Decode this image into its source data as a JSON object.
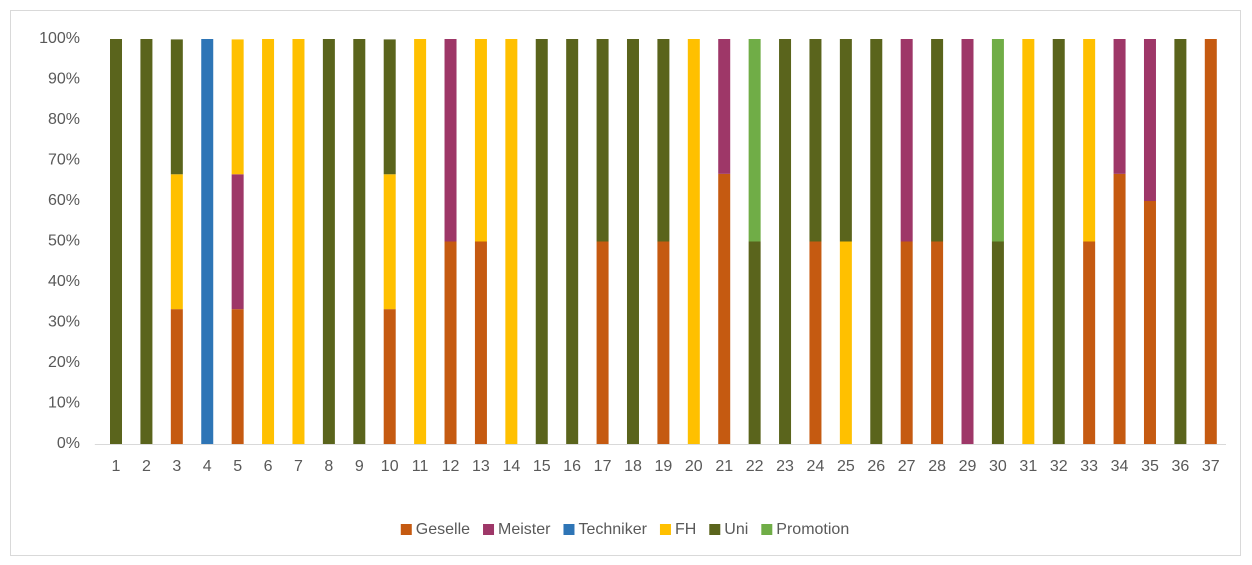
{
  "chart_data": {
    "type": "stacked_bar_100",
    "categories": [
      "1",
      "2",
      "3",
      "4",
      "5",
      "6",
      "7",
      "8",
      "9",
      "10",
      "11",
      "12",
      "13",
      "14",
      "15",
      "16",
      "17",
      "18",
      "19",
      "20",
      "21",
      "22",
      "23",
      "24",
      "25",
      "26",
      "27",
      "28",
      "29",
      "30",
      "31",
      "32",
      "33",
      "34",
      "35",
      "36",
      "37"
    ],
    "series": [
      {
        "name": "Geselle",
        "color": "#c55a11",
        "values": [
          0,
          0,
          33.3,
          0,
          33.3,
          0,
          0,
          0,
          0,
          33.3,
          0,
          50,
          50,
          0,
          0,
          0,
          50,
          0,
          50,
          0,
          66.7,
          0,
          0,
          50,
          0,
          0,
          50,
          50,
          0,
          0,
          0,
          0,
          50,
          66.7,
          60,
          0,
          100
        ]
      },
      {
        "name": "Meister",
        "color": "#9e3768",
        "values": [
          0,
          0,
          0,
          0,
          33.3,
          0,
          0,
          0,
          0,
          0,
          0,
          50,
          0,
          0,
          0,
          0,
          0,
          0,
          0,
          0,
          33.3,
          0,
          0,
          0,
          0,
          0,
          50,
          0,
          100,
          0,
          0,
          0,
          0,
          33.3,
          40,
          0,
          0
        ]
      },
      {
        "name": "Techniker",
        "color": "#2e75b6",
        "values": [
          0,
          0,
          0,
          100,
          0,
          0,
          0,
          0,
          0,
          0,
          0,
          0,
          0,
          0,
          0,
          0,
          0,
          0,
          0,
          0,
          0,
          0,
          0,
          0,
          0,
          0,
          0,
          0,
          0,
          0,
          0,
          0,
          0,
          0,
          0,
          0,
          0
        ]
      },
      {
        "name": "FH",
        "color": "#ffc000",
        "values": [
          0,
          0,
          33.3,
          0,
          33.3,
          100,
          100,
          0,
          0,
          33.3,
          100,
          0,
          50,
          100,
          0,
          0,
          0,
          0,
          0,
          100,
          0,
          0,
          0,
          0,
          50,
          0,
          0,
          0,
          0,
          0,
          100,
          0,
          50,
          0,
          0,
          0,
          0
        ]
      },
      {
        "name": "Uni",
        "color": "#5a641c",
        "values": [
          100,
          100,
          33.3,
          0,
          0,
          0,
          0,
          100,
          100,
          33.3,
          0,
          0,
          0,
          0,
          100,
          100,
          50,
          100,
          50,
          0,
          0,
          50,
          100,
          50,
          50,
          100,
          0,
          50,
          0,
          50,
          0,
          100,
          0,
          0,
          0,
          100,
          0
        ]
      },
      {
        "name": "Promotion",
        "color": "#70ad47",
        "values": [
          0,
          0,
          0,
          0,
          0,
          0,
          0,
          0,
          0,
          0,
          0,
          0,
          0,
          0,
          0,
          0,
          0,
          0,
          0,
          0,
          0,
          50,
          0,
          0,
          0,
          0,
          0,
          0,
          0,
          50,
          0,
          0,
          0,
          0,
          0,
          0,
          0
        ]
      }
    ],
    "ylim": [
      0,
      100
    ],
    "yticks": [
      {
        "value": 0,
        "label": "0%"
      },
      {
        "value": 10,
        "label": "10%"
      },
      {
        "value": 20,
        "label": "20%"
      },
      {
        "value": 30,
        "label": "30%"
      },
      {
        "value": 40,
        "label": "40%"
      },
      {
        "value": 50,
        "label": "50%"
      },
      {
        "value": 60,
        "label": "60%"
      },
      {
        "value": 70,
        "label": "70%"
      },
      {
        "value": 80,
        "label": "80%"
      },
      {
        "value": 90,
        "label": "90%"
      },
      {
        "value": 100,
        "label": "100%"
      }
    ],
    "grid": false,
    "legend": "bottom"
  }
}
